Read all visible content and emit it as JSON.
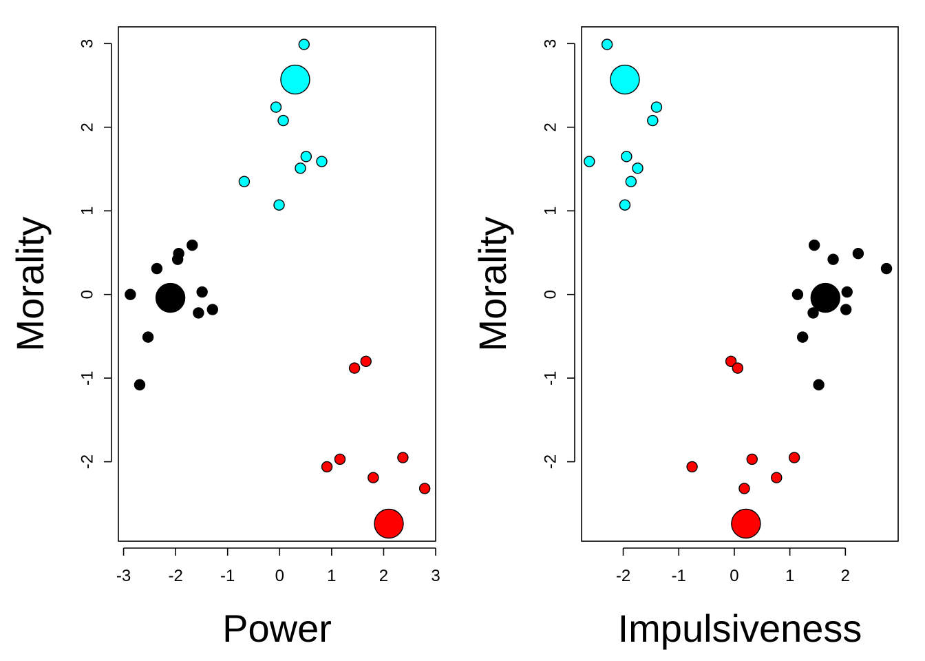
{
  "chart_data": [
    {
      "type": "scatter",
      "xlabel": "Power",
      "ylabel": "Morality",
      "xlim": [
        -3.1,
        3.0
      ],
      "ylim": [
        -2.95,
        3.2
      ],
      "xticks": [
        "-3",
        "-2",
        "-1",
        "0",
        "1",
        "2",
        "3"
      ],
      "yticks": [
        "-2",
        "-1",
        "0",
        "1",
        "2",
        "3"
      ],
      "grid": false,
      "series": [
        {
          "color": "#00ffff",
          "points": [
            {
              "x": 0.47,
              "y": 2.99
            },
            {
              "x": -0.07,
              "y": 2.24
            },
            {
              "x": 0.07,
              "y": 2.08
            },
            {
              "x": 0.51,
              "y": 1.65
            },
            {
              "x": 0.81,
              "y": 1.59
            },
            {
              "x": 0.4,
              "y": 1.51
            },
            {
              "x": -0.68,
              "y": 1.35
            },
            {
              "x": -0.01,
              "y": 1.07
            }
          ],
          "centroid": {
            "x": 0.3,
            "y": 2.57
          }
        },
        {
          "color": "#000000",
          "points": [
            {
              "x": -1.68,
              "y": 0.59
            },
            {
              "x": -1.94,
              "y": 0.49
            },
            {
              "x": -1.96,
              "y": 0.42
            },
            {
              "x": -2.36,
              "y": 0.31
            },
            {
              "x": -1.49,
              "y": 0.03
            },
            {
              "x": -2.87,
              "y": 0.0
            },
            {
              "x": -1.29,
              "y": -0.18
            },
            {
              "x": -1.56,
              "y": -0.22
            },
            {
              "x": -2.53,
              "y": -0.51
            },
            {
              "x": -2.69,
              "y": -1.08
            }
          ],
          "centroid": {
            "x": -2.1,
            "y": -0.04
          }
        },
        {
          "color": "#ff0000",
          "points": [
            {
              "x": 1.66,
              "y": -0.8
            },
            {
              "x": 1.44,
              "y": -0.88
            },
            {
              "x": 2.37,
              "y": -1.95
            },
            {
              "x": 1.16,
              "y": -1.97
            },
            {
              "x": 0.91,
              "y": -2.06
            },
            {
              "x": 1.8,
              "y": -2.19
            },
            {
              "x": 2.79,
              "y": -2.32
            }
          ],
          "centroid": {
            "x": 2.1,
            "y": -2.74
          }
        }
      ]
    },
    {
      "type": "scatter",
      "xlabel": "Impulsiveness",
      "ylabel": "Morality",
      "xlim": [
        -2.75,
        2.95
      ],
      "ylim": [
        -2.95,
        3.2
      ],
      "xticks": [
        "-2",
        "-1",
        "0",
        "1",
        "2"
      ],
      "yticks": [
        "-2",
        "-1",
        "0",
        "1",
        "2",
        "3"
      ],
      "grid": false,
      "series": [
        {
          "color": "#00ffff",
          "points": [
            {
              "x": -2.29,
              "y": 2.99
            },
            {
              "x": -1.4,
              "y": 2.24
            },
            {
              "x": -1.47,
              "y": 2.08
            },
            {
              "x": -1.94,
              "y": 1.65
            },
            {
              "x": -2.61,
              "y": 1.59
            },
            {
              "x": -1.74,
              "y": 1.51
            },
            {
              "x": -1.86,
              "y": 1.35
            },
            {
              "x": -1.97,
              "y": 1.07
            }
          ],
          "centroid": {
            "x": -1.97,
            "y": 2.57
          }
        },
        {
          "color": "#000000",
          "points": [
            {
              "x": 1.44,
              "y": 0.59
            },
            {
              "x": 2.23,
              "y": 0.49
            },
            {
              "x": 1.78,
              "y": 0.42
            },
            {
              "x": 2.74,
              "y": 0.31
            },
            {
              "x": 2.03,
              "y": 0.03
            },
            {
              "x": 1.14,
              "y": 0.0
            },
            {
              "x": 2.01,
              "y": -0.18
            },
            {
              "x": 1.42,
              "y": -0.22
            },
            {
              "x": 1.23,
              "y": -0.51
            },
            {
              "x": 1.52,
              "y": -1.08
            }
          ],
          "centroid": {
            "x": 1.64,
            "y": -0.04
          }
        },
        {
          "color": "#ff0000",
          "points": [
            {
              "x": -0.06,
              "y": -0.8
            },
            {
              "x": 0.06,
              "y": -0.88
            },
            {
              "x": 1.08,
              "y": -1.95
            },
            {
              "x": 0.32,
              "y": -1.97
            },
            {
              "x": -0.76,
              "y": -2.06
            },
            {
              "x": 0.76,
              "y": -2.19
            },
            {
              "x": 0.18,
              "y": -2.32
            }
          ],
          "centroid": {
            "x": 0.21,
            "y": -2.74
          }
        }
      ]
    }
  ]
}
